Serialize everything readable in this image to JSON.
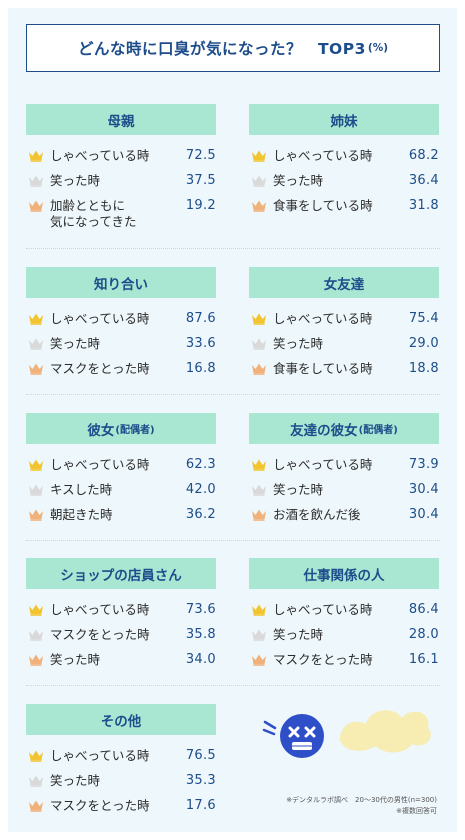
{
  "title": "どんな時に口臭が気になった？　TOP3",
  "title_unit": "(%)",
  "colors": {
    "gold": "#f2c530",
    "silver": "#d9d9d9",
    "bronze": "#f0b27a",
    "header": "#a9e7d3",
    "navy": "#1d4d8a"
  },
  "chart_data": {
    "type": "table",
    "panels": [
      {
        "name": "母親",
        "sub": "",
        "items": [
          {
            "rank": 1,
            "label": "しゃべっている時",
            "value": 72.5
          },
          {
            "rank": 2,
            "label": "笑った時",
            "value": 37.5
          },
          {
            "rank": 3,
            "label": "加齢とともに",
            "label2": "気になってきた",
            "value": 19.2
          }
        ]
      },
      {
        "name": "姉妹",
        "sub": "",
        "items": [
          {
            "rank": 1,
            "label": "しゃべっている時",
            "value": 68.2
          },
          {
            "rank": 2,
            "label": "笑った時",
            "value": 36.4
          },
          {
            "rank": 3,
            "label": "食事をしている時",
            "value": 31.8
          }
        ]
      },
      {
        "name": "知り合い",
        "sub": "",
        "items": [
          {
            "rank": 1,
            "label": "しゃべっている時",
            "value": 87.6
          },
          {
            "rank": 2,
            "label": "笑った時",
            "value": 33.6
          },
          {
            "rank": 3,
            "label": "マスクをとった時",
            "value": 16.8
          }
        ]
      },
      {
        "name": "女友達",
        "sub": "",
        "items": [
          {
            "rank": 1,
            "label": "しゃべっている時",
            "value": 75.4
          },
          {
            "rank": 2,
            "label": "笑った時",
            "value": 29.0
          },
          {
            "rank": 3,
            "label": "食事をしている時",
            "value": 18.8
          }
        ]
      },
      {
        "name": "彼女",
        "sub": "(配偶者)",
        "items": [
          {
            "rank": 1,
            "label": "しゃべっている時",
            "value": 62.3
          },
          {
            "rank": 2,
            "label": "キスした時",
            "value": 42.0
          },
          {
            "rank": 3,
            "label": "朝起きた時",
            "value": 36.2
          }
        ]
      },
      {
        "name": "友達の彼女",
        "sub": "(配偶者)",
        "items": [
          {
            "rank": 1,
            "label": "しゃべっている時",
            "value": 73.9
          },
          {
            "rank": 2,
            "label": "笑った時",
            "value": 30.4
          },
          {
            "rank": 3,
            "label": "お酒を飲んだ後",
            "value": 30.4
          }
        ]
      },
      {
        "name": "ショップの店員さん",
        "sub": "",
        "items": [
          {
            "rank": 1,
            "label": "しゃべっている時",
            "value": 73.6
          },
          {
            "rank": 2,
            "label": "マスクをとった時",
            "value": 35.8
          },
          {
            "rank": 3,
            "label": "笑った時",
            "value": 34.0
          }
        ]
      },
      {
        "name": "仕事関係の人",
        "sub": "",
        "items": [
          {
            "rank": 1,
            "label": "しゃべっている時",
            "value": 86.4
          },
          {
            "rank": 2,
            "label": "笑った時",
            "value": 28.0
          },
          {
            "rank": 3,
            "label": "マスクをとった時",
            "value": 16.1
          }
        ]
      },
      {
        "name": "その他",
        "sub": "",
        "items": [
          {
            "rank": 1,
            "label": "しゃべっている時",
            "value": 76.5
          },
          {
            "rank": 2,
            "label": "笑った時",
            "value": 35.3
          },
          {
            "rank": 3,
            "label": "マスクをとった時",
            "value": 17.6
          }
        ]
      }
    ]
  },
  "footnote": {
    "line1": "※デンタルラボ調べ　20〜30代の男性(n=300)",
    "line2": "※複数回答可"
  },
  "mascot": {
    "icon": "dizzy-face-with-bad-breath-icon"
  }
}
